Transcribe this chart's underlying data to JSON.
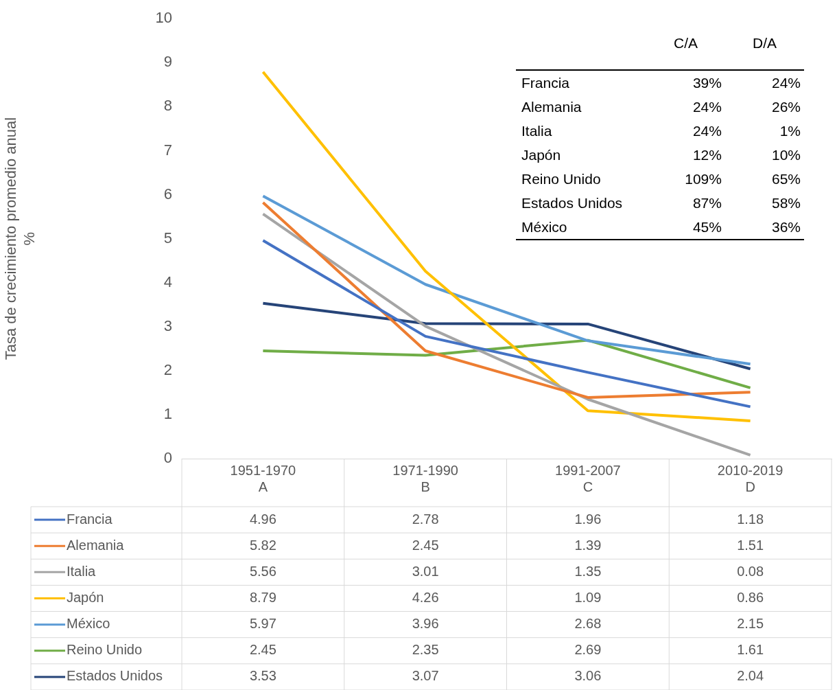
{
  "chart_data": [
    {
      "type": "line",
      "ylabel": "Tasa de crecimiento promedio anual %",
      "categories": [
        "1951-1970 A",
        "1971-1990 B",
        "1991-2007 C",
        "2010-2019 D"
      ],
      "ylim": [
        0,
        10
      ],
      "yticks": [
        0,
        1,
        2,
        3,
        4,
        5,
        6,
        7,
        8,
        9,
        10
      ],
      "grid": false,
      "legend": "bottom",
      "marker": "none",
      "data_labels": true,
      "series": [
        {
          "name": "Francia",
          "color": "#4472c4",
          "values": [
            4.96,
            2.78,
            1.96,
            1.18
          ]
        },
        {
          "name": "Alemania",
          "color": "#ed7d31",
          "values": [
            5.82,
            2.45,
            1.39,
            1.51
          ]
        },
        {
          "name": "Italia",
          "color": "#a5a5a5",
          "values": [
            5.56,
            3.01,
            1.35,
            0.08
          ]
        },
        {
          "name": "Japón",
          "color": "#ffc000",
          "values": [
            8.79,
            4.26,
            1.09,
            0.86
          ]
        },
        {
          "name": "México",
          "color": "#5b9bd5",
          "values": [
            5.97,
            3.96,
            2.68,
            2.15
          ]
        },
        {
          "name": "Reino Unido",
          "color": "#70ad47",
          "values": [
            2.45,
            2.35,
            2.69,
            1.61
          ]
        },
        {
          "name": "Estados Unidos",
          "color": "#264478",
          "values": [
            3.53,
            3.07,
            3.06,
            2.04
          ]
        }
      ]
    },
    {
      "type": "other",
      "categories": [
        "C/A",
        "D/A"
      ],
      "y_categories": [
        "Francia",
        "Alemania",
        "Italia",
        "Japón",
        "Reino Unido",
        "Estados Unidos",
        "México"
      ],
      "cell_labels": [
        [
          "39%",
          "24%"
        ],
        [
          "24%",
          "26%"
        ],
        [
          "24%",
          "1%"
        ],
        [
          "12%",
          "10%"
        ],
        [
          "109%",
          "65%"
        ],
        [
          "87%",
          "58%"
        ],
        [
          "45%",
          "36%"
        ]
      ]
    }
  ]
}
